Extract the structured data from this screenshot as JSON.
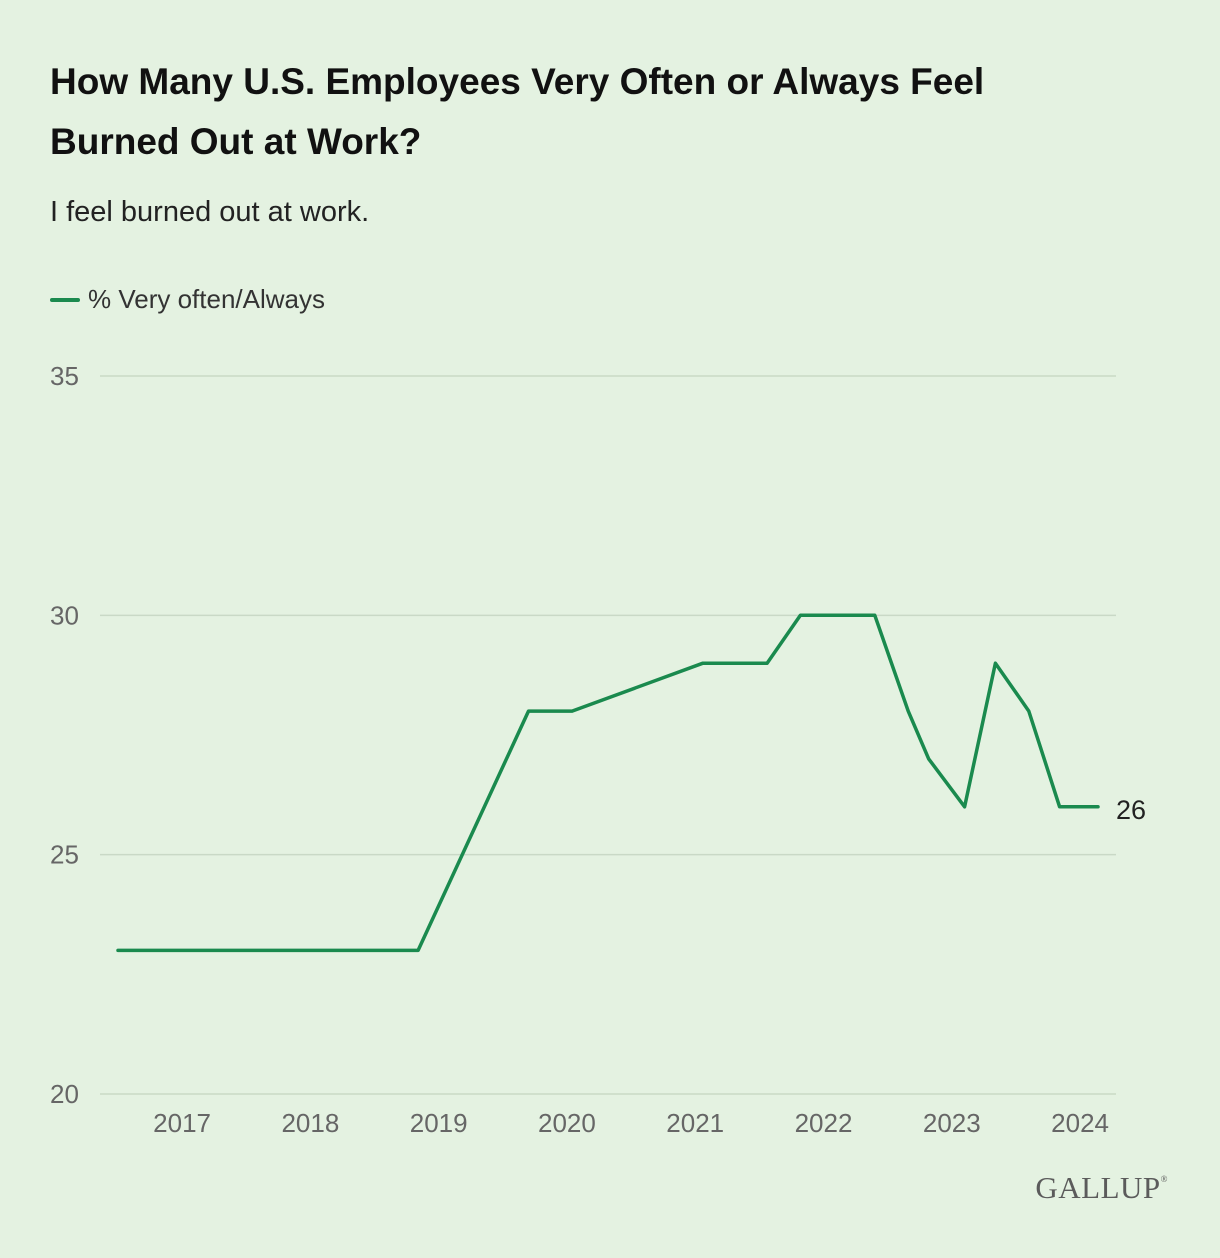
{
  "title": "How Many U.S. Employees Very Often or Always Feel Burned Out at Work?",
  "subtitle": "I feel burned out at work.",
  "brand": "GALLUP",
  "colors": {
    "background": "#e4f2e1",
    "line": "#1a8a4e",
    "grid": "#c9d9c6",
    "axis_text": "#666666"
  },
  "chart_data": {
    "type": "line",
    "title": "How Many U.S. Employees Very Often or Always Feel Burned Out at Work?",
    "subtitle": "I feel burned out at work.",
    "ylim": [
      20,
      35
    ],
    "yticks": [
      20,
      25,
      30,
      35
    ],
    "xticks": [
      "2017",
      "2018",
      "2019",
      "2020",
      "2021",
      "2022",
      "2023",
      "2024"
    ],
    "xlim": [
      2016.36,
      2024.28
    ],
    "grid": "horizontal",
    "legend_position": "top-left",
    "end_label": "26",
    "series": [
      {
        "name": "% Very often/Always",
        "x": [
          2016.5,
          2018.84,
          2019.7,
          2020.04,
          2021.06,
          2021.56,
          2021.82,
          2022.4,
          2022.66,
          2022.82,
          2023.1,
          2023.34,
          2023.6,
          2023.84,
          2024.14
        ],
        "y": [
          23,
          23,
          28,
          28,
          29,
          29,
          30,
          30,
          28,
          27,
          26,
          29,
          28,
          26,
          26
        ]
      }
    ]
  }
}
